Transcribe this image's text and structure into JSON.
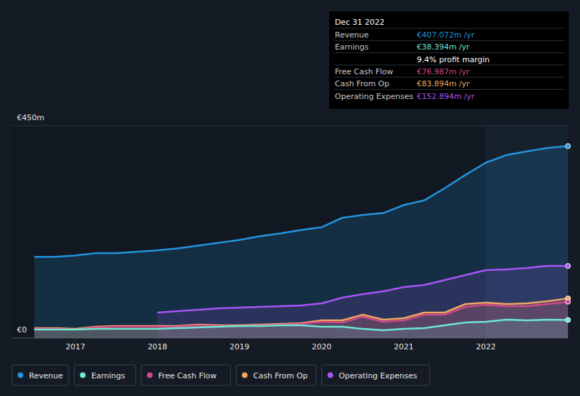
{
  "chart_data": {
    "type": "line",
    "x": [
      2016.5,
      2016.75,
      2017.0,
      2017.25,
      2017.5,
      2017.75,
      2018.0,
      2018.25,
      2018.5,
      2018.75,
      2019.0,
      2019.25,
      2019.5,
      2019.75,
      2020.0,
      2020.25,
      2020.5,
      2020.75,
      2021.0,
      2021.25,
      2021.5,
      2021.75,
      2022.0,
      2022.25,
      2022.5,
      2022.75,
      2023.0
    ],
    "xlim": [
      2016.22,
      2023.0
    ],
    "xticks": [
      2017,
      2018,
      2019,
      2020,
      2021,
      2022
    ],
    "ylim": [
      0,
      450
    ],
    "yticks": [
      {
        "value": 0,
        "label": "€0"
      },
      {
        "value": 450,
        "label": "€450m"
      }
    ],
    "grid": true,
    "legend": "bottom",
    "series": [
      {
        "name": "Revenue",
        "color": "#2394df",
        "values": [
          172,
          172,
          175,
          180,
          180,
          183,
          186,
          190,
          196,
          202,
          208,
          216,
          222,
          229,
          235,
          255,
          261,
          265,
          282,
          292,
          318,
          346,
          372,
          388,
          396,
          403,
          407.072
        ]
      },
      {
        "name": "Earnings",
        "color": "#6ee7d4",
        "values": [
          18,
          18,
          18,
          19.5,
          19.5,
          19.5,
          19.5,
          21,
          22.5,
          24,
          25.5,
          25.5,
          27,
          27,
          24,
          24,
          19.5,
          16.5,
          19.5,
          21,
          27,
          33,
          34.5,
          39,
          37.5,
          39,
          38.394
        ]
      },
      {
        "name": "Free Cash Flow",
        "color": "#d2498a",
        "values": [
          19.5,
          19.5,
          18,
          22.5,
          24,
          24,
          24,
          24,
          27,
          25.5,
          25.5,
          27,
          28.5,
          30,
          34.5,
          33,
          45,
          34.5,
          37.5,
          49.5,
          49.5,
          66,
          70.5,
          67.5,
          67.5,
          72,
          76.987
        ]
      },
      {
        "name": "Cash From Op",
        "color": "#f0a860",
        "values": [
          21,
          21,
          19.5,
          24,
          25.5,
          25.5,
          25.5,
          25.5,
          28.5,
          27,
          27,
          28.5,
          30,
          31.5,
          37.5,
          37.5,
          49.5,
          39,
          42,
          54,
          54,
          72,
          75,
          72,
          73.5,
          78,
          83.894
        ]
      },
      {
        "name": "Operating Expenses",
        "color": "#a855f7",
        "values": [
          null,
          null,
          null,
          null,
          null,
          null,
          54,
          57,
          60,
          63,
          64.5,
          66,
          67.5,
          69,
          73.5,
          85.5,
          93,
          99,
          108,
          112.5,
          123,
          133.5,
          144,
          145.5,
          148.5,
          153,
          152.894
        ]
      }
    ],
    "annotations": {
      "title": "Dec 31 2022",
      "rows": [
        {
          "label": "Revenue",
          "value": "€407.072m /yr",
          "color": "#2394df"
        },
        {
          "label": "Earnings",
          "value": "€38.394m /yr",
          "color": "#6ee7d4"
        },
        {
          "note": "9.4% profit margin"
        },
        {
          "label": "Free Cash Flow",
          "value": "€76.987m /yr",
          "color": "#d2498a"
        },
        {
          "label": "Cash From Op",
          "value": "€83.894m /yr",
          "color": "#f0a860"
        },
        {
          "label": "Operating Expenses",
          "value": "€152.894m /yr",
          "color": "#a855f7"
        }
      ]
    }
  }
}
